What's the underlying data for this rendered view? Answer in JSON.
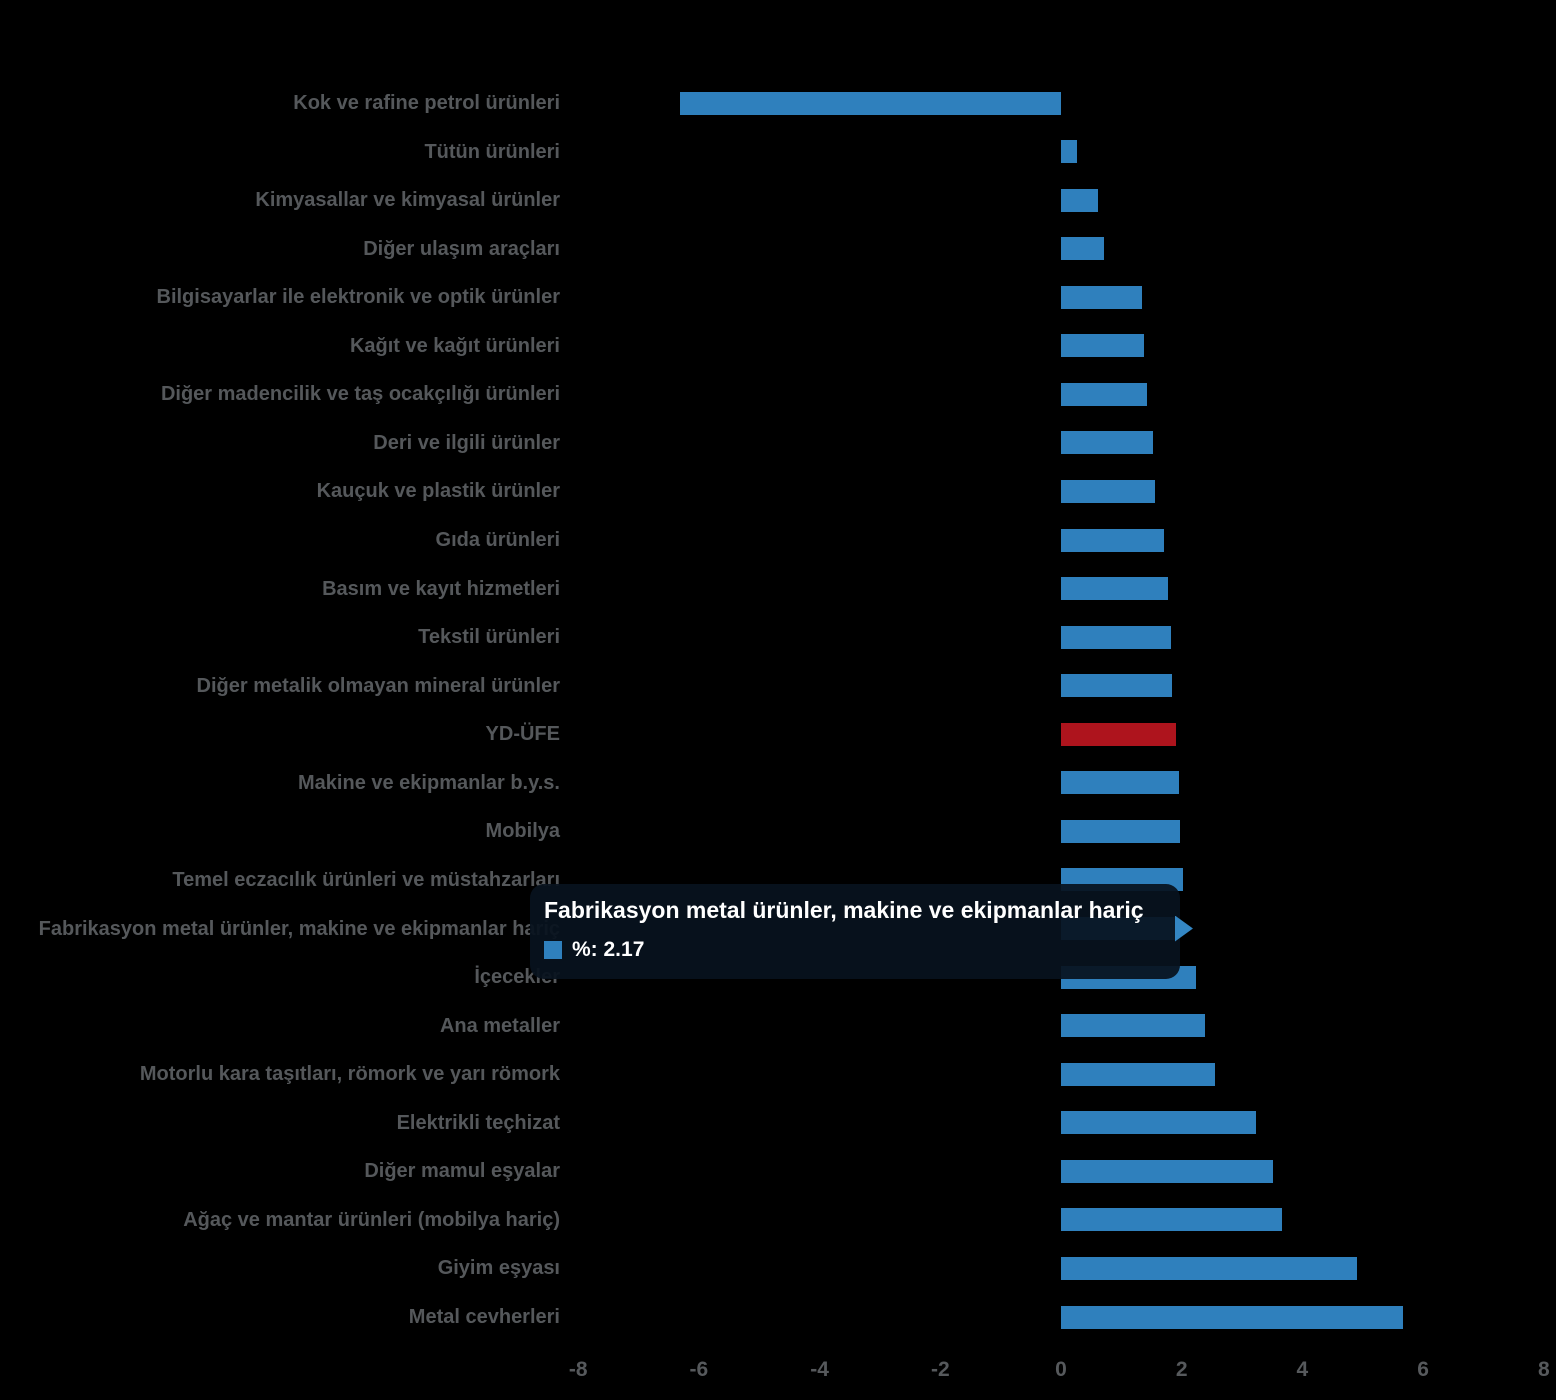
{
  "chart_data": {
    "type": "bar",
    "orientation": "horizontal",
    "title": "",
    "xlabel": "",
    "ylabel": "",
    "xlim": [
      -8,
      8
    ],
    "x_ticks": [
      "-8",
      "-6",
      "-4",
      "-2",
      "0",
      "2",
      "4",
      "6",
      "8"
    ],
    "grid": false,
    "legend_position": "none",
    "categories": [
      "Kok ve rafine petrol ürünleri",
      "Tütün ürünleri",
      "Kimyasallar ve kimyasal ürünler",
      "Diğer ulaşım araçları",
      "Bilgisayarlar ile elektronik ve optik ürünler",
      "Kağıt ve kağıt ürünleri",
      "Diğer madencilik ve taş ocakçılığı ürünleri",
      "Deri ve ilgili ürünler",
      "Kauçuk ve plastik ürünler",
      "Gıda ürünleri",
      "Basım ve kayıt hizmetleri",
      "Tekstil ürünleri",
      "Diğer metalik olmayan mineral ürünler",
      "YD-ÜFE",
      "Makine ve ekipmanlar b.y.s.",
      "Mobilya",
      "Temel eczacılık ürünleri ve müstahzarları",
      "Fabrikasyon metal ürünler, makine ve ekipmanlar hariç",
      "İçecekler",
      "Ana metaller",
      "Motorlu kara taşıtları, römork ve yarı römork",
      "Elektrikli teçhizat",
      "Diğer mamul eşyalar",
      "Ağaç ve mantar ürünleri (mobilya hariç)",
      "Giyim eşyası",
      "Metal cevherleri"
    ],
    "values": [
      -6.32,
      0.27,
      0.61,
      0.72,
      1.34,
      1.38,
      1.42,
      1.53,
      1.55,
      1.71,
      1.78,
      1.83,
      1.84,
      1.9,
      1.95,
      1.98,
      2.02,
      2.17,
      2.24,
      2.39,
      2.55,
      3.23,
      3.51,
      3.67,
      4.91,
      5.66
    ],
    "emphasis_category": "YD-ÜFE",
    "highlight_category": "Fabrikasyon metal ürünler, makine ve ekipmanlar hariç"
  },
  "tooltip": {
    "title": "Fabrikasyon metal ürünler, makine ve ekipmanlar hariç",
    "value_text": "%: 2.17"
  },
  "colors": {
    "background": "#000000",
    "bar": "#2f80bd",
    "bar_highlight": "#3487c4",
    "emphasis_bar": "#ae141d",
    "label_text": "#55585b",
    "tooltip_bg": "rgba(8,18,30,0.93)",
    "tooltip_text": "#ffffff"
  }
}
